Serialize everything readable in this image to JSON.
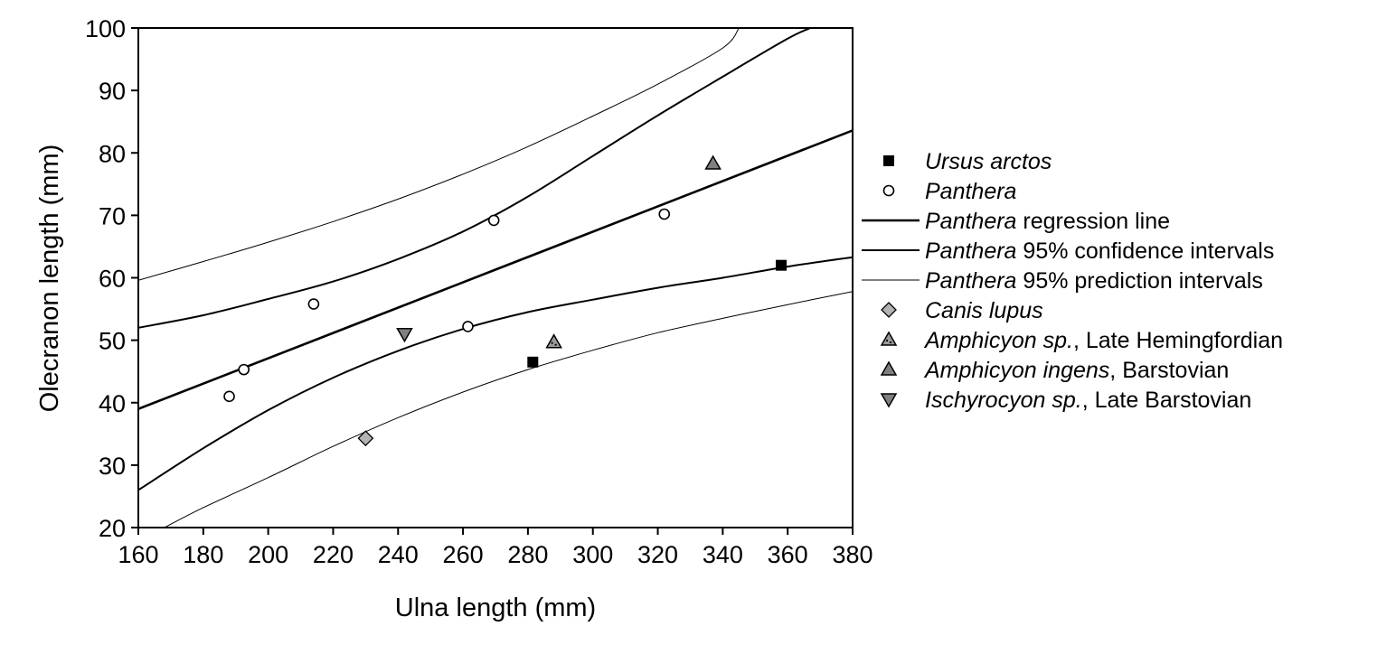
{
  "chart_data": {
    "type": "scatter",
    "xlabel": "Ulna length (mm)",
    "ylabel": "Olecranon length (mm)",
    "xlim": [
      160,
      380
    ],
    "ylim": [
      20,
      100
    ],
    "x_ticks": [
      "160",
      "180",
      "200",
      "220",
      "240",
      "260",
      "280",
      "300",
      "320",
      "340",
      "360",
      "380"
    ],
    "y_ticks": [
      "20",
      "30",
      "40",
      "50",
      "60",
      "70",
      "80",
      "90",
      "100"
    ],
    "grid": false,
    "legend_position": "right",
    "series": [
      {
        "name": "Ursus arctos",
        "marker": "filled-square",
        "color": "#000000",
        "points": [
          [
            281.5,
            46.5
          ],
          [
            358,
            62
          ]
        ]
      },
      {
        "name": "Panthera",
        "marker": "open-circle",
        "color": "#000000",
        "points": [
          [
            188,
            41
          ],
          [
            192.5,
            45.3
          ],
          [
            214,
            55.8
          ],
          [
            261.5,
            52.2
          ],
          [
            269.5,
            69.2
          ],
          [
            322,
            70.2
          ]
        ]
      },
      {
        "name": "Panthera regression line",
        "kind": "line",
        "style": "regression",
        "points": [
          [
            160,
            39
          ],
          [
            380,
            83.6
          ]
        ]
      },
      {
        "name": "Panthera 95% confidence intervals",
        "kind": "line",
        "style": "confidence",
        "upper": [
          [
            160,
            52
          ],
          [
            180,
            54
          ],
          [
            200,
            56.6
          ],
          [
            220,
            59.4
          ],
          [
            240,
            63
          ],
          [
            260,
            67.4
          ],
          [
            280,
            73
          ],
          [
            300,
            79.5
          ],
          [
            320,
            86
          ],
          [
            340,
            92.2
          ],
          [
            360,
            98.3
          ],
          [
            367,
            100
          ]
        ],
        "lower": [
          [
            160,
            26
          ],
          [
            180,
            32.7
          ],
          [
            200,
            38.8
          ],
          [
            220,
            44
          ],
          [
            240,
            48.3
          ],
          [
            260,
            51.8
          ],
          [
            280,
            54.5
          ],
          [
            300,
            56.5
          ],
          [
            320,
            58.4
          ],
          [
            340,
            60
          ],
          [
            360,
            61.8
          ],
          [
            380,
            63.3
          ]
        ]
      },
      {
        "name": "Panthera 95% prediction intervals",
        "kind": "line",
        "style": "prediction",
        "upper": [
          [
            160,
            59.6
          ],
          [
            180,
            62.6
          ],
          [
            200,
            65.7
          ],
          [
            220,
            69
          ],
          [
            240,
            72.6
          ],
          [
            260,
            76.6
          ],
          [
            280,
            81
          ],
          [
            300,
            85.9
          ],
          [
            320,
            91
          ],
          [
            340,
            96.8
          ],
          [
            345,
            100
          ]
        ],
        "lower": [
          [
            168,
            20
          ],
          [
            180,
            23.2
          ],
          [
            200,
            28
          ],
          [
            220,
            33
          ],
          [
            240,
            37.6
          ],
          [
            260,
            41.7
          ],
          [
            280,
            45.3
          ],
          [
            300,
            48.4
          ],
          [
            320,
            51.2
          ],
          [
            340,
            53.5
          ],
          [
            360,
            55.7
          ],
          [
            380,
            57.8
          ]
        ]
      },
      {
        "name": "Canis lupus",
        "marker": "diamond",
        "color": "#b3b3b3",
        "points": [
          [
            230,
            34.3
          ]
        ]
      },
      {
        "name": "Amphicyon sp., Late Hemingfordian",
        "marker": "triangle-up-dotted",
        "color": "#9a9a9a",
        "points": [
          [
            288,
            49.7
          ]
        ]
      },
      {
        "name": "Amphicyon ingens, Barstovian",
        "marker": "triangle-up",
        "color": "#808080",
        "points": [
          [
            337,
            78.3
          ]
        ]
      },
      {
        "name": "Ischyrocyon sp., Late Barstovian",
        "marker": "triangle-down",
        "color": "#808080",
        "points": [
          [
            242,
            51
          ]
        ]
      }
    ],
    "legend": [
      {
        "italic": "Ursus arctos",
        "rest": ""
      },
      {
        "italic": "Panthera",
        "rest": ""
      },
      {
        "italic": "Panthera",
        "rest": " regression line"
      },
      {
        "italic": "Panthera",
        "rest": " 95% confidence intervals"
      },
      {
        "italic": "Panthera",
        "rest": " 95% prediction intervals"
      },
      {
        "italic": "Canis lupus",
        "rest": ""
      },
      {
        "italic": "Amphicyon sp.",
        "rest": ", Late Hemingfordian"
      },
      {
        "italic": "Amphicyon ingens",
        "rest": ", Barstovian"
      },
      {
        "italic": "Ischyrocyon sp.",
        "rest": ", Late Barstovian"
      }
    ]
  }
}
